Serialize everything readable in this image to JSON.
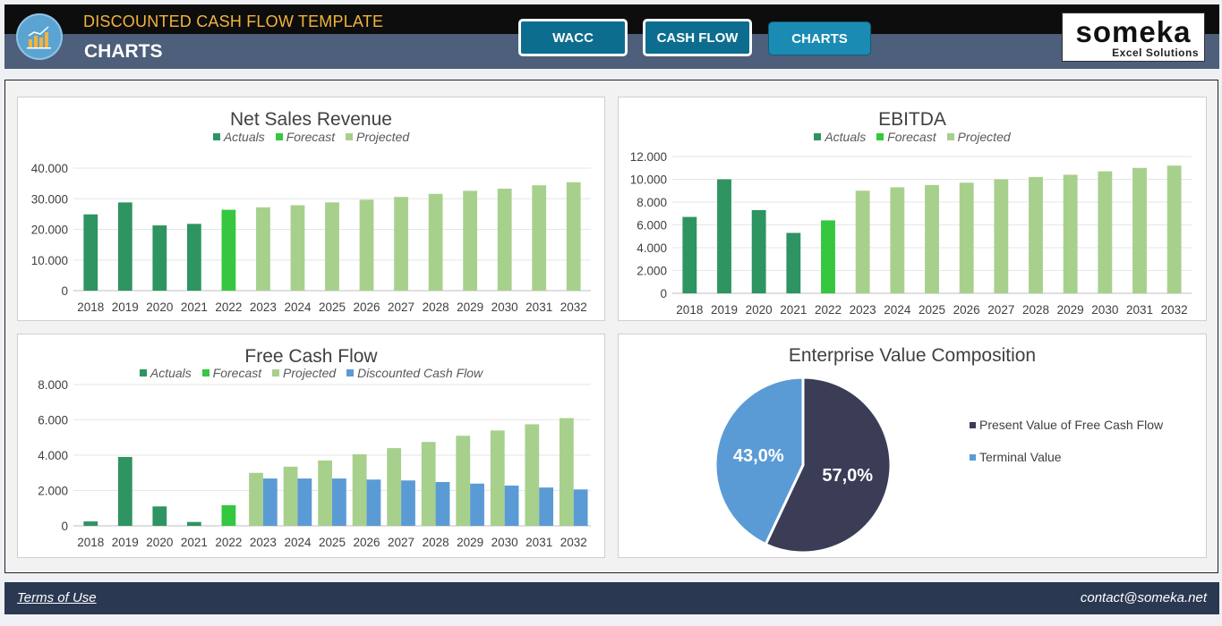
{
  "header": {
    "app_title": "DISCOUNTED CASH FLOW TEMPLATE",
    "page_title": "CHARTS",
    "nav": [
      {
        "label": "WACC"
      },
      {
        "label": "CASH FLOW"
      },
      {
        "label": "CHARTS"
      }
    ],
    "brand": {
      "name": "someka",
      "tagline": "Excel Solutions"
    }
  },
  "colors": {
    "actuals": "#2e9461",
    "forecast": "#34c73f",
    "projected": "#a8d08d",
    "discounted": "#5b9bd5",
    "pie_pv": "#3b3d57",
    "pie_tv": "#5b9bd5"
  },
  "chart_data": [
    {
      "id": "net-sales",
      "type": "bar",
      "title": "Net Sales Revenue",
      "legend": [
        "Actuals",
        "Forecast",
        "Projected"
      ],
      "categories": [
        "2018",
        "2019",
        "2020",
        "2021",
        "2022",
        "2023",
        "2024",
        "2025",
        "2026",
        "2027",
        "2028",
        "2029",
        "2030",
        "2031",
        "2032"
      ],
      "values": [
        24900,
        28800,
        21300,
        21800,
        26400,
        27200,
        27900,
        28800,
        29700,
        30600,
        31600,
        32600,
        33300,
        34400,
        35400
      ],
      "series_kind": [
        "actuals",
        "actuals",
        "actuals",
        "actuals",
        "forecast",
        "projected",
        "projected",
        "projected",
        "projected",
        "projected",
        "projected",
        "projected",
        "projected",
        "projected",
        "projected"
      ],
      "yticks": [
        "0",
        "10.000",
        "20.000",
        "30.000",
        "40.000"
      ],
      "ylim": [
        0,
        40000
      ]
    },
    {
      "id": "ebitda",
      "type": "bar",
      "title": "EBITDA",
      "legend": [
        "Actuals",
        "Forecast",
        "Projected"
      ],
      "categories": [
        "2018",
        "2019",
        "2020",
        "2021",
        "2022",
        "2023",
        "2024",
        "2025",
        "2026",
        "2027",
        "2028",
        "2029",
        "2030",
        "2031",
        "2032"
      ],
      "values": [
        6700,
        10000,
        7300,
        5300,
        6400,
        9000,
        9300,
        9500,
        9700,
        10000,
        10200,
        10400,
        10700,
        11000,
        11200
      ],
      "series_kind": [
        "actuals",
        "actuals",
        "actuals",
        "actuals",
        "forecast",
        "projected",
        "projected",
        "projected",
        "projected",
        "projected",
        "projected",
        "projected",
        "projected",
        "projected",
        "projected"
      ],
      "yticks": [
        "0",
        "2.000",
        "4.000",
        "6.000",
        "8.000",
        "10.000",
        "12.000"
      ],
      "ylim": [
        0,
        12000
      ]
    },
    {
      "id": "free-cash-flow",
      "type": "bar",
      "title": "Free Cash Flow",
      "legend": [
        "Actuals",
        "Forecast",
        "Projected",
        "Discounted Cash Flow"
      ],
      "categories": [
        "2018",
        "2019",
        "2020",
        "2021",
        "2022",
        "2023",
        "2024",
        "2025",
        "2026",
        "2027",
        "2028",
        "2029",
        "2030",
        "2031",
        "2032"
      ],
      "series": [
        {
          "name": "Cash Flow",
          "values": [
            250,
            3900,
            1100,
            220,
            1170,
            3000,
            3350,
            3700,
            4050,
            4400,
            4750,
            5100,
            5400,
            5750,
            6100
          ]
        },
        {
          "name": "Discounted Cash Flow",
          "values": [
            null,
            null,
            null,
            null,
            null,
            2680,
            2680,
            2680,
            2620,
            2570,
            2480,
            2390,
            2280,
            2170,
            2060
          ]
        }
      ],
      "series_kind": [
        "actuals",
        "actuals",
        "actuals",
        "actuals",
        "forecast",
        "projected",
        "projected",
        "projected",
        "projected",
        "projected",
        "projected",
        "projected",
        "projected",
        "projected",
        "projected"
      ],
      "yticks": [
        "0",
        "2.000",
        "4.000",
        "6.000",
        "8.000"
      ],
      "ylim": [
        0,
        8000
      ]
    },
    {
      "id": "ev-composition",
      "type": "pie",
      "title": "Enterprise Value Composition",
      "labels": [
        "Present Value of Free Cash Flow",
        "Terminal Value"
      ],
      "values": [
        57.0,
        43.0
      ],
      "value_labels": [
        "57,0%",
        "43,0%"
      ]
    }
  ],
  "footer": {
    "terms": "Terms of Use",
    "contact": "contact@someka.net"
  }
}
